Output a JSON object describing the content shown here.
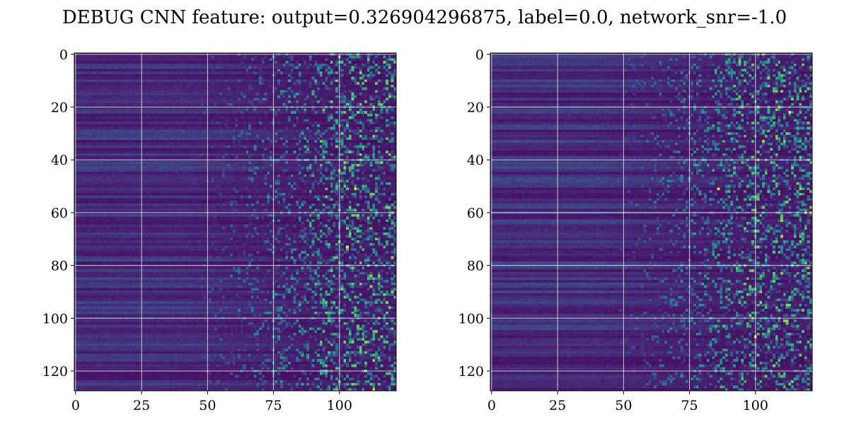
{
  "figure": {
    "title": "DEBUG CNN feature: output=0.326904296875, label=0.0, network_snr=-1.0"
  },
  "chart_data": [
    {
      "type": "heatmap",
      "colormap": "viridis",
      "rows": 128,
      "cols": 122,
      "xlim": [
        -0.5,
        121.5
      ],
      "ylim": [
        127.5,
        -0.5
      ],
      "xticks": [
        0,
        25,
        50,
        75,
        100
      ],
      "yticks": [
        0,
        20,
        40,
        60,
        80,
        100,
        120
      ],
      "grid": true,
      "structure": "low uniform values (dark purple) with horizontal banding for columns 0-60, becoming noisy with scattered teal/green values from column ~65 to 121",
      "max_cells": [
        [
          51,
          106
        ],
        [
          73,
          103
        ],
        [
          127,
          113
        ]
      ],
      "seed": 11
    },
    {
      "type": "heatmap",
      "colormap": "viridis",
      "rows": 128,
      "cols": 122,
      "xlim": [
        -0.5,
        121.5
      ],
      "ylim": [
        127.5,
        -0.5
      ],
      "xticks": [
        0,
        25,
        50,
        75,
        100
      ],
      "yticks": [
        0,
        20,
        40,
        60,
        80,
        100,
        120
      ],
      "grid": true,
      "structure": "low uniform values (dark purple) with horizontal banding for columns 0-60, becoming noisy with scattered teal/green values from column ~65 to 121",
      "max_cells": [
        [
          22,
          113
        ],
        [
          107,
          100
        ],
        [
          51,
          86
        ]
      ],
      "seed": 29
    }
  ]
}
